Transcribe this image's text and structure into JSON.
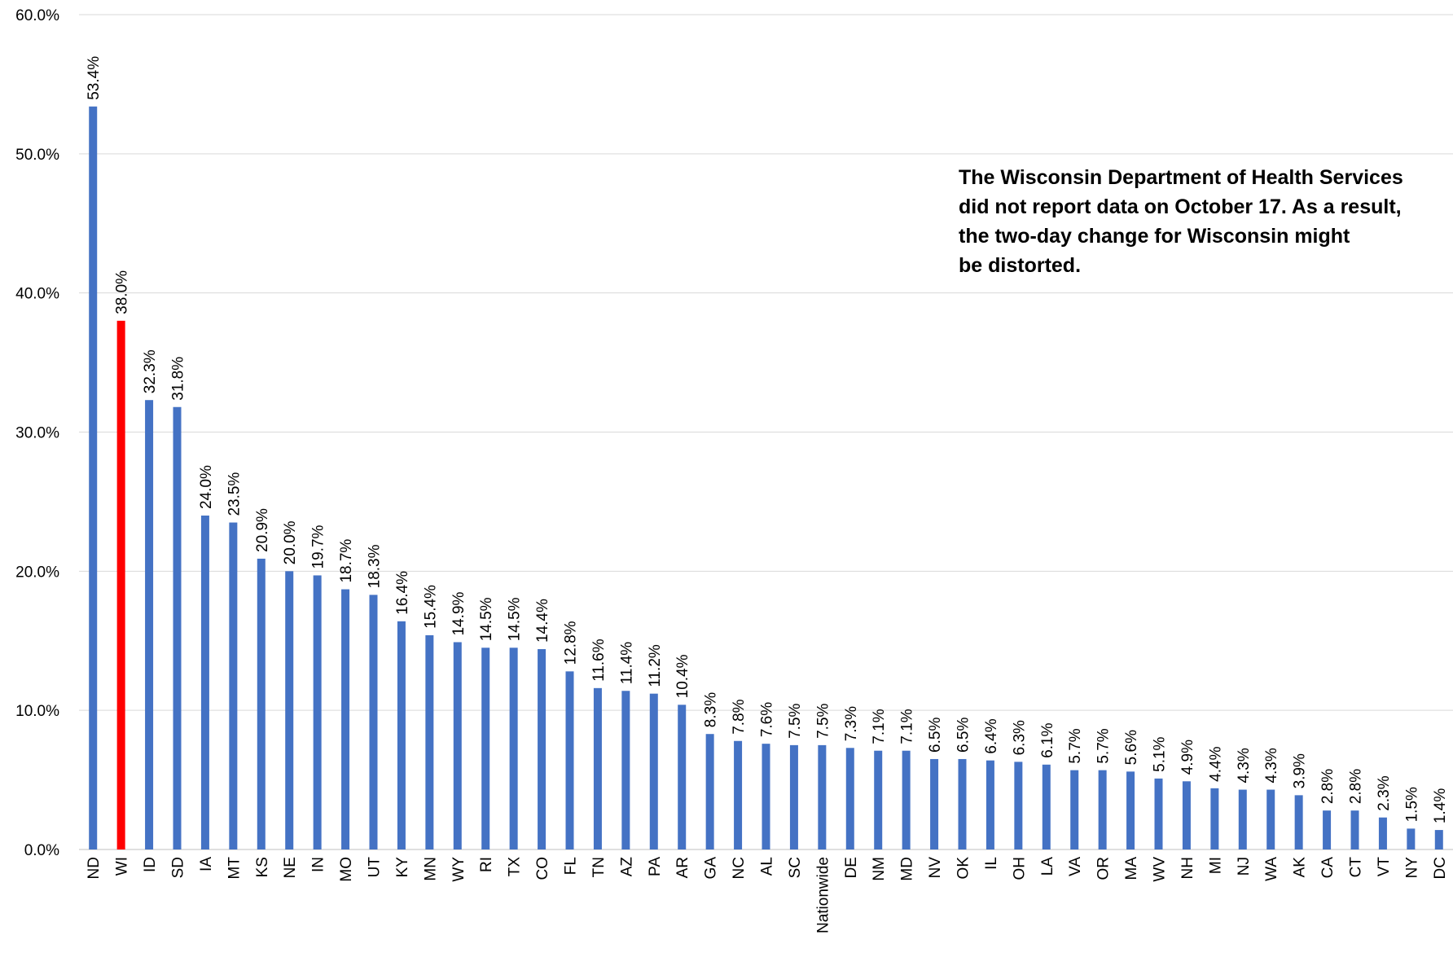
{
  "chart_data": {
    "type": "bar",
    "categories": [
      "ND",
      "WI",
      "ID",
      "SD",
      "IA",
      "MT",
      "KS",
      "NE",
      "IN",
      "MO",
      "UT",
      "KY",
      "MN",
      "WY",
      "RI",
      "TX",
      "CO",
      "FL",
      "TN",
      "AZ",
      "PA",
      "AR",
      "GA",
      "NC",
      "AL",
      "SC",
      "Nationwide",
      "DE",
      "NM",
      "MD",
      "NV",
      "OK",
      "IL",
      "OH",
      "LA",
      "VA",
      "OR",
      "MA",
      "WV",
      "NH",
      "MI",
      "NJ",
      "WA",
      "AK",
      "CA",
      "CT",
      "VT",
      "NY",
      "DC"
    ],
    "values": [
      53.4,
      38.0,
      32.3,
      31.8,
      24.0,
      23.5,
      20.9,
      20.0,
      19.7,
      18.7,
      18.3,
      16.4,
      15.4,
      14.9,
      14.5,
      14.5,
      14.4,
      12.8,
      11.6,
      11.4,
      11.2,
      10.4,
      8.3,
      7.8,
      7.6,
      7.5,
      7.5,
      7.3,
      7.1,
      7.1,
      6.5,
      6.5,
      6.4,
      6.3,
      6.1,
      5.7,
      5.7,
      5.6,
      5.1,
      4.9,
      4.4,
      4.3,
      4.3,
      3.9,
      2.8,
      2.8,
      2.3,
      1.5,
      1.4
    ],
    "data_labels": [
      "53.4%",
      "38.0%",
      "32.3%",
      "31.8%",
      "24.0%",
      "23.5%",
      "20.9%",
      "20.0%",
      "19.7%",
      "18.7%",
      "18.3%",
      "16.4%",
      "15.4%",
      "14.9%",
      "14.5%",
      "14.5%",
      "14.4%",
      "12.8%",
      "11.6%",
      "11.4%",
      "11.2%",
      "10.4%",
      "8.3%",
      "7.8%",
      "7.6%",
      "7.5%",
      "7.5%",
      "7.3%",
      "7.1%",
      "7.1%",
      "6.5%",
      "6.5%",
      "6.4%",
      "6.3%",
      "6.1%",
      "5.7%",
      "5.7%",
      "5.6%",
      "5.1%",
      "4.9%",
      "4.4%",
      "4.3%",
      "4.3%",
      "3.9%",
      "2.8%",
      "2.8%",
      "2.3%",
      "1.5%",
      "1.4%"
    ],
    "title": "",
    "xlabel": "",
    "ylabel": "",
    "ylim": [
      0,
      60
    ],
    "y_ticks": [
      0,
      10,
      20,
      30,
      40,
      50,
      60
    ],
    "y_tick_labels": [
      "0.0%",
      "10.0%",
      "20.0%",
      "30.0%",
      "40.0%",
      "50.0%",
      "60.0%"
    ],
    "grid": "horizontal",
    "bar_color": "#4472C4",
    "highlight_category": "WI",
    "highlight_color": "#FF0000",
    "annotation_lines": [
      "The Wisconsin Department of Health Services",
      "did not report data on October 17. As a result,",
      "the two-day change for Wisconsin might",
      "be distorted."
    ]
  }
}
